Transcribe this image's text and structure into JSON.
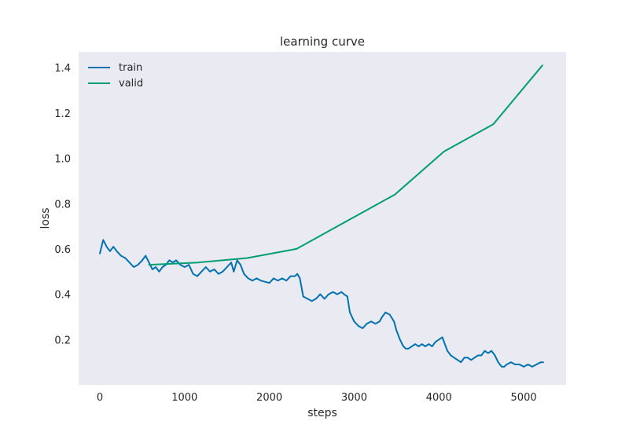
{
  "chart_data": {
    "type": "line",
    "title": "learning curve",
    "xlabel": "steps",
    "ylabel": "loss",
    "xlim": [
      -250,
      5500
    ],
    "ylim": [
      0.0,
      1.47
    ],
    "xticks": [
      0,
      1000,
      2000,
      3000,
      4000,
      5000
    ],
    "yticks": [
      0.2,
      0.4,
      0.6,
      0.8,
      1.0,
      1.2,
      1.4
    ],
    "xtick_labels": [
      "0",
      "1000",
      "2000",
      "3000",
      "4000",
      "5000"
    ],
    "ytick_labels": [
      "0.2",
      "0.4",
      "0.6",
      "0.8",
      "1.0",
      "1.2",
      "1.4"
    ],
    "grid": false,
    "legend_position": "top-left",
    "background": "#eaeaf2",
    "series": [
      {
        "name": "train",
        "color": "#0072b2",
        "x": [
          0,
          40,
          80,
          120,
          160,
          200,
          250,
          300,
          350,
          400,
          450,
          500,
          540,
          580,
          620,
          660,
          700,
          740,
          780,
          820,
          860,
          900,
          950,
          1000,
          1050,
          1100,
          1150,
          1200,
          1250,
          1300,
          1350,
          1400,
          1450,
          1500,
          1550,
          1580,
          1620,
          1660,
          1700,
          1750,
          1800,
          1850,
          1900,
          2000,
          2050,
          2100,
          2150,
          2200,
          2250,
          2300,
          2330,
          2360,
          2400,
          2450,
          2500,
          2550,
          2600,
          2650,
          2700,
          2750,
          2800,
          2850,
          2880,
          2920,
          2950,
          3000,
          3050,
          3100,
          3150,
          3200,
          3250,
          3300,
          3330,
          3370,
          3420,
          3470,
          3500,
          3540,
          3580,
          3610,
          3640,
          3680,
          3720,
          3760,
          3800,
          3840,
          3880,
          3920,
          3960,
          4000,
          4040,
          4070,
          4100,
          4140,
          4180,
          4220,
          4260,
          4300,
          4340,
          4380,
          4420,
          4460,
          4500,
          4540,
          4580,
          4620,
          4660,
          4700,
          4740,
          4770,
          4800,
          4850,
          4900,
          4950,
          5000,
          5050,
          5100,
          5150,
          5200,
          5230
        ],
        "y": [
          0.58,
          0.64,
          0.61,
          0.59,
          0.61,
          0.59,
          0.57,
          0.56,
          0.54,
          0.52,
          0.53,
          0.55,
          0.57,
          0.54,
          0.51,
          0.52,
          0.5,
          0.52,
          0.53,
          0.55,
          0.54,
          0.55,
          0.53,
          0.52,
          0.53,
          0.49,
          0.48,
          0.5,
          0.52,
          0.5,
          0.51,
          0.49,
          0.5,
          0.52,
          0.54,
          0.5,
          0.55,
          0.53,
          0.49,
          0.47,
          0.46,
          0.47,
          0.46,
          0.45,
          0.47,
          0.46,
          0.47,
          0.46,
          0.48,
          0.48,
          0.49,
          0.47,
          0.39,
          0.38,
          0.37,
          0.38,
          0.4,
          0.38,
          0.4,
          0.41,
          0.4,
          0.41,
          0.4,
          0.39,
          0.32,
          0.28,
          0.26,
          0.25,
          0.27,
          0.28,
          0.27,
          0.28,
          0.3,
          0.32,
          0.31,
          0.28,
          0.24,
          0.2,
          0.17,
          0.16,
          0.16,
          0.17,
          0.18,
          0.17,
          0.18,
          0.17,
          0.18,
          0.17,
          0.19,
          0.2,
          0.21,
          0.18,
          0.15,
          0.13,
          0.12,
          0.11,
          0.1,
          0.12,
          0.12,
          0.11,
          0.12,
          0.13,
          0.13,
          0.15,
          0.14,
          0.15,
          0.13,
          0.1,
          0.08,
          0.08,
          0.09,
          0.1,
          0.09,
          0.09,
          0.08,
          0.09,
          0.08,
          0.09,
          0.1,
          0.1
        ]
      },
      {
        "name": "valid",
        "color": "#009e73",
        "x": [
          580,
          1160,
          1740,
          2320,
          2900,
          3480,
          4060,
          4640,
          5220
        ],
        "y": [
          0.53,
          0.54,
          0.56,
          0.6,
          0.72,
          0.84,
          1.03,
          1.15,
          1.41
        ]
      }
    ]
  }
}
